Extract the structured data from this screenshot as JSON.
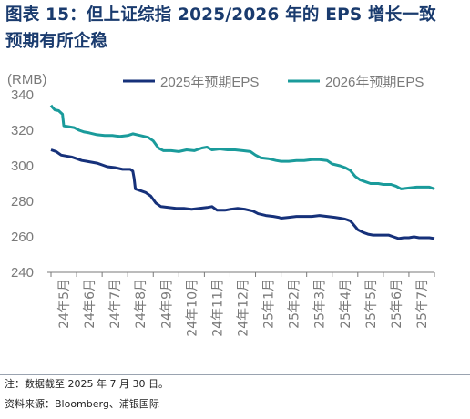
{
  "title_line1": "图表 15：但上证综指 2025/2026 年的 EPS 增长一致",
  "title_line2": "预期有所企稳",
  "footnote": "注：数据截至 2025 年 7 月 30 日。",
  "source": "资料来源：Bloomberg、浦银国际",
  "chart_data": {
    "type": "line",
    "title": "",
    "xlabel": "",
    "ylabel": "",
    "unit_label": "(RMB)",
    "ylim": [
      240,
      340
    ],
    "yticks": [
      240,
      260,
      280,
      300,
      320,
      340
    ],
    "xlim": [
      0,
      15
    ],
    "x_tick_labels": [
      "24年5月",
      "24年6月",
      "24年7月",
      "24年8月",
      "24年9月",
      "24年10月",
      "24年11月",
      "24年12月",
      "25年1月",
      "25年2月",
      "25年3月",
      "25年4月",
      "25年5月",
      "25年6月",
      "25年7月"
    ],
    "legend_position": "top",
    "grid": false,
    "series": [
      {
        "name": "2025年预期EPS",
        "color": "#16317a",
        "points": [
          [
            0.0,
            309
          ],
          [
            0.2,
            308
          ],
          [
            0.4,
            306
          ],
          [
            0.6,
            305.5
          ],
          [
            0.8,
            305
          ],
          [
            1.0,
            304
          ],
          [
            1.2,
            303
          ],
          [
            1.4,
            302.5
          ],
          [
            1.6,
            302
          ],
          [
            1.8,
            301.5
          ],
          [
            2.0,
            300.5
          ],
          [
            2.2,
            299.5
          ],
          [
            2.5,
            299
          ],
          [
            2.8,
            298
          ],
          [
            3.1,
            298
          ],
          [
            3.2,
            297
          ],
          [
            3.25,
            293
          ],
          [
            3.3,
            287
          ],
          [
            3.5,
            286
          ],
          [
            3.7,
            285
          ],
          [
            3.9,
            283
          ],
          [
            4.1,
            279
          ],
          [
            4.3,
            277
          ],
          [
            4.6,
            276.5
          ],
          [
            4.9,
            276
          ],
          [
            5.2,
            276
          ],
          [
            5.5,
            275.5
          ],
          [
            5.8,
            276
          ],
          [
            6.1,
            276.5
          ],
          [
            6.3,
            277
          ],
          [
            6.5,
            275
          ],
          [
            6.8,
            275
          ],
          [
            7.0,
            275.5
          ],
          [
            7.3,
            276
          ],
          [
            7.6,
            275.5
          ],
          [
            7.9,
            274.5
          ],
          [
            8.1,
            273
          ],
          [
            8.4,
            272
          ],
          [
            8.7,
            271.5
          ],
          [
            8.9,
            271
          ],
          [
            9.0,
            270.5
          ],
          [
            9.3,
            271
          ],
          [
            9.6,
            271.5
          ],
          [
            9.9,
            271.5
          ],
          [
            10.2,
            271.5
          ],
          [
            10.5,
            272
          ],
          [
            10.8,
            271.5
          ],
          [
            11.1,
            271
          ],
          [
            11.3,
            270.5
          ],
          [
            11.5,
            270
          ],
          [
            11.7,
            269
          ],
          [
            11.8,
            267.5
          ],
          [
            12.0,
            264
          ],
          [
            12.2,
            262.5
          ],
          [
            12.4,
            261.5
          ],
          [
            12.6,
            261
          ],
          [
            12.8,
            261
          ],
          [
            13.0,
            261
          ],
          [
            13.2,
            261
          ],
          [
            13.4,
            260
          ],
          [
            13.6,
            259
          ],
          [
            13.8,
            259.5
          ],
          [
            14.0,
            259.5
          ],
          [
            14.2,
            260
          ],
          [
            14.4,
            259.5
          ],
          [
            14.6,
            259.5
          ],
          [
            14.8,
            259.5
          ],
          [
            15.0,
            259
          ]
        ]
      },
      {
        "name": "2026年预期EPS",
        "color": "#1a9b9b",
        "points": [
          [
            0.0,
            334
          ],
          [
            0.05,
            333
          ],
          [
            0.15,
            331.5
          ],
          [
            0.3,
            331
          ],
          [
            0.45,
            329
          ],
          [
            0.5,
            322.5
          ],
          [
            0.7,
            322
          ],
          [
            0.9,
            321.5
          ],
          [
            1.1,
            320
          ],
          [
            1.3,
            319
          ],
          [
            1.5,
            318.5
          ],
          [
            1.8,
            317.5
          ],
          [
            2.1,
            317
          ],
          [
            2.4,
            317
          ],
          [
            2.7,
            316.5
          ],
          [
            3.0,
            317
          ],
          [
            3.2,
            318
          ],
          [
            3.5,
            317
          ],
          [
            3.8,
            316
          ],
          [
            4.0,
            314
          ],
          [
            4.2,
            310
          ],
          [
            4.4,
            308.5
          ],
          [
            4.7,
            308.5
          ],
          [
            5.0,
            308
          ],
          [
            5.3,
            309
          ],
          [
            5.6,
            308.5
          ],
          [
            5.9,
            310
          ],
          [
            6.1,
            310.5
          ],
          [
            6.3,
            309
          ],
          [
            6.6,
            309.5
          ],
          [
            6.9,
            309
          ],
          [
            7.2,
            309
          ],
          [
            7.5,
            308.5
          ],
          [
            7.8,
            308
          ],
          [
            8.0,
            306
          ],
          [
            8.2,
            304.5
          ],
          [
            8.5,
            304
          ],
          [
            8.8,
            303
          ],
          [
            9.0,
            302.5
          ],
          [
            9.3,
            302.5
          ],
          [
            9.6,
            303
          ],
          [
            9.9,
            303
          ],
          [
            10.2,
            303.5
          ],
          [
            10.5,
            303.5
          ],
          [
            10.8,
            303
          ],
          [
            11.0,
            301
          ],
          [
            11.3,
            300
          ],
          [
            11.5,
            299
          ],
          [
            11.7,
            297.5
          ],
          [
            11.9,
            294
          ],
          [
            12.1,
            292
          ],
          [
            12.3,
            291
          ],
          [
            12.5,
            290
          ],
          [
            12.8,
            290
          ],
          [
            13.0,
            289.5
          ],
          [
            13.3,
            289.5
          ],
          [
            13.5,
            288.5
          ],
          [
            13.7,
            287
          ],
          [
            14.0,
            287.5
          ],
          [
            14.3,
            288
          ],
          [
            14.6,
            288
          ],
          [
            14.8,
            288
          ],
          [
            15.0,
            287
          ]
        ]
      }
    ]
  }
}
